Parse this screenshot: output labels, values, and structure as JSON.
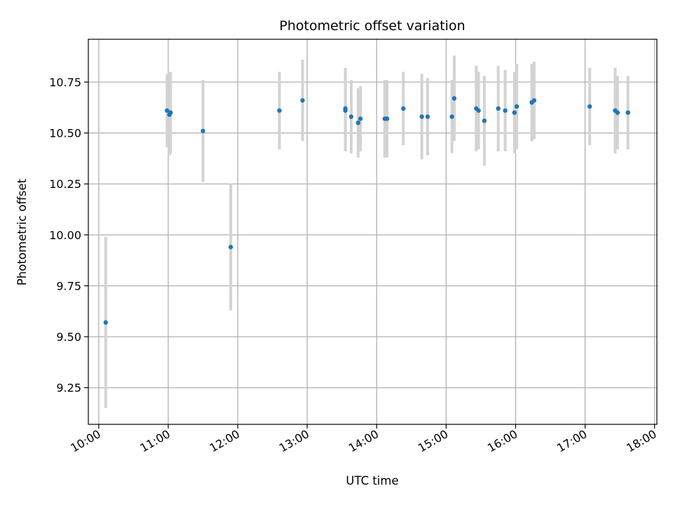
{
  "chart_data": {
    "type": "scatter",
    "title": "Photometric offset variation",
    "xlabel": "UTC time",
    "ylabel": "Photometric offset",
    "x_ticks": [
      "10:00",
      "11:00",
      "12:00",
      "13:00",
      "14:00",
      "15:00",
      "16:00",
      "17:00",
      "18:00"
    ],
    "y_ticks": [
      "9.25",
      "9.50",
      "9.75",
      "10.00",
      "10.25",
      "10.50",
      "10.75"
    ],
    "xlim": [
      "09:51",
      "18:02"
    ],
    "ylim": [
      9.07,
      10.96
    ],
    "grid": true,
    "colors": {
      "point": "#1f77b4",
      "errorbar": "#d3d3d3",
      "grid": "#b0b0b0"
    },
    "points": [
      {
        "x": "10:06",
        "y": 9.57,
        "yerr": 0.42
      },
      {
        "x": "10:59",
        "y": 10.61,
        "yerr": 0.18
      },
      {
        "x": "11:01",
        "y": 10.59,
        "yerr": 0.2
      },
      {
        "x": "11:02",
        "y": 10.6,
        "yerr": 0.2
      },
      {
        "x": "11:30",
        "y": 10.51,
        "yerr": 0.25
      },
      {
        "x": "11:54",
        "y": 9.94,
        "yerr": 0.31
      },
      {
        "x": "12:36",
        "y": 10.61,
        "yerr": 0.19
      },
      {
        "x": "12:56",
        "y": 10.66,
        "yerr": 0.2
      },
      {
        "x": "13:33",
        "y": 10.62,
        "yerr": 0.2
      },
      {
        "x": "13:33",
        "y": 10.61,
        "yerr": 0.2
      },
      {
        "x": "13:38",
        "y": 10.58,
        "yerr": 0.18
      },
      {
        "x": "13:44",
        "y": 10.55,
        "yerr": 0.17
      },
      {
        "x": "13:46",
        "y": 10.57,
        "yerr": 0.16
      },
      {
        "x": "14:07",
        "y": 10.57,
        "yerr": 0.19
      },
      {
        "x": "14:09",
        "y": 10.57,
        "yerr": 0.19
      },
      {
        "x": "14:23",
        "y": 10.62,
        "yerr": 0.18
      },
      {
        "x": "14:39",
        "y": 10.58,
        "yerr": 0.21
      },
      {
        "x": "14:44",
        "y": 10.58,
        "yerr": 0.19
      },
      {
        "x": "15:05",
        "y": 10.58,
        "yerr": 0.18
      },
      {
        "x": "15:07",
        "y": 10.67,
        "yerr": 0.21
      },
      {
        "x": "15:26",
        "y": 10.62,
        "yerr": 0.21
      },
      {
        "x": "15:28",
        "y": 10.61,
        "yerr": 0.19
      },
      {
        "x": "15:33",
        "y": 10.56,
        "yerr": 0.22
      },
      {
        "x": "15:45",
        "y": 10.62,
        "yerr": 0.21
      },
      {
        "x": "15:51",
        "y": 10.61,
        "yerr": 0.2
      },
      {
        "x": "15:59",
        "y": 10.6,
        "yerr": 0.2
      },
      {
        "x": "16:01",
        "y": 10.63,
        "yerr": 0.21
      },
      {
        "x": "16:14",
        "y": 10.65,
        "yerr": 0.19
      },
      {
        "x": "16:14",
        "y": 10.65,
        "yerr": 0.19
      },
      {
        "x": "16:16",
        "y": 10.66,
        "yerr": 0.19
      },
      {
        "x": "17:04",
        "y": 10.63,
        "yerr": 0.19
      },
      {
        "x": "17:26",
        "y": 10.61,
        "yerr": 0.21
      },
      {
        "x": "17:28",
        "y": 10.6,
        "yerr": 0.18
      },
      {
        "x": "17:37",
        "y": 10.6,
        "yerr": 0.18
      }
    ]
  }
}
